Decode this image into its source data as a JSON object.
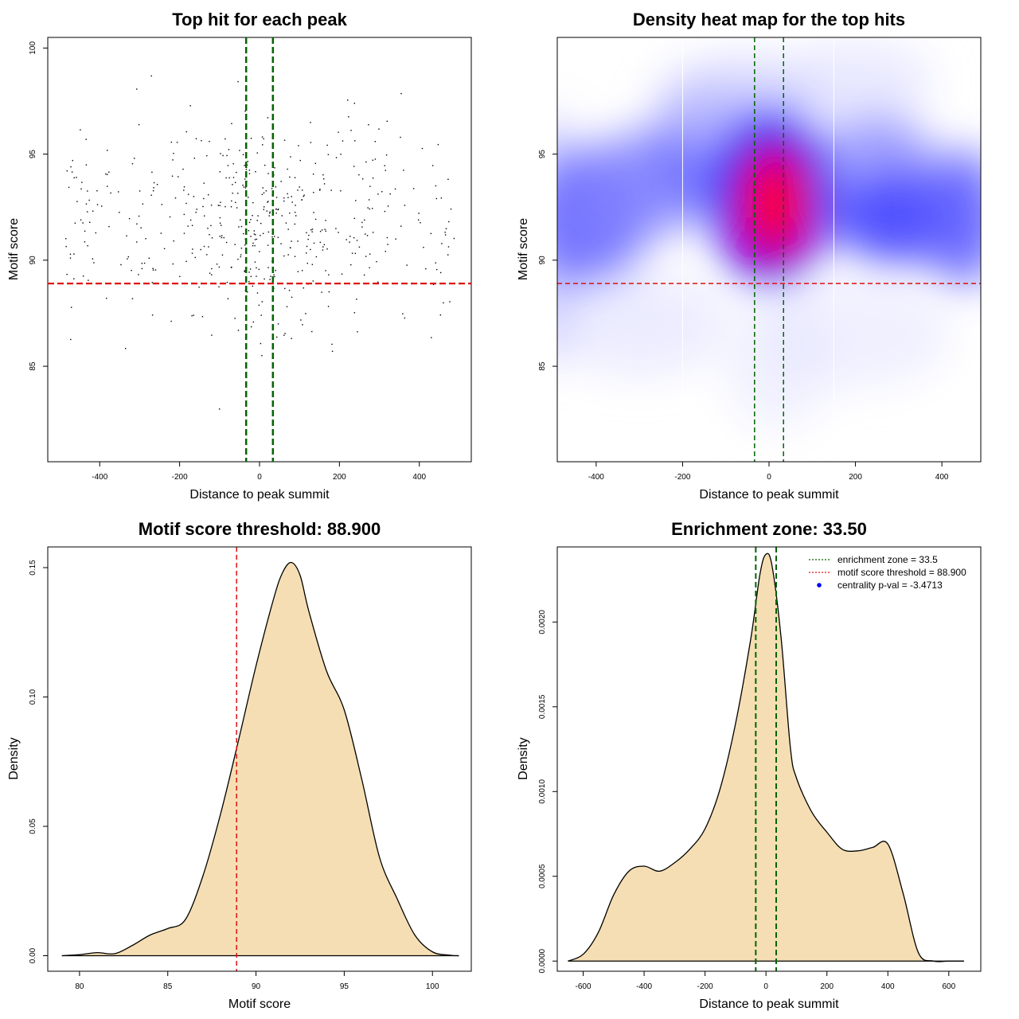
{
  "colors": {
    "green": "#006400",
    "red": "#dd1111",
    "fill": "#f5deb3",
    "points": "#000000",
    "heat_blue": "#0000ff",
    "heat_red": "#ff0000"
  },
  "chart_data": [
    {
      "type": "scatter",
      "title": "Top hit for each peak",
      "xlabel": "Distance to peak summit",
      "ylabel": "Motif score",
      "xlim": [
        -530,
        530
      ],
      "ylim": [
        80.5,
        100.5
      ],
      "xticks": [
        -400,
        -200,
        0,
        200,
        400
      ],
      "yticks": [
        85,
        90,
        95,
        100
      ],
      "xtick_labels": [
        "-400",
        "-200",
        "0",
        "200",
        "400"
      ],
      "ytick_labels": [
        "85",
        "90",
        "95",
        "100"
      ],
      "vlines": [
        -33.5,
        33.5
      ],
      "hline": 88.9,
      "n_points": 520,
      "points_x_range": [
        -490,
        490
      ],
      "points_y_range": [
        81,
        99.5
      ]
    },
    {
      "type": "heatmap",
      "title": "Density heat map for the top hits",
      "xlabel": "Distance to peak summit",
      "ylabel": "Motif score",
      "xlim": [
        -490,
        490
      ],
      "ylim": [
        80.5,
        100.5
      ],
      "xticks": [
        -400,
        -200,
        0,
        200,
        400
      ],
      "yticks": [
        85,
        90,
        95
      ],
      "xtick_labels": [
        "-400",
        "-200",
        "0",
        "200",
        "400"
      ],
      "ytick_labels": [
        "85",
        "90",
        "95"
      ],
      "vlines": [
        -33.5,
        33.5
      ],
      "hline": 88.9,
      "white_vlines": [
        -200,
        150
      ],
      "hotspot": {
        "x": 10,
        "y": 92.5
      }
    },
    {
      "type": "area",
      "title": "Motif score threshold: 88.900",
      "xlabel": "Motif score",
      "ylabel": "Density",
      "xlim": [
        78.2,
        102.2
      ],
      "ylim": [
        -0.006,
        0.158
      ],
      "xticks": [
        80,
        85,
        90,
        95,
        100
      ],
      "yticks": [
        0.0,
        0.05,
        0.1,
        0.15
      ],
      "xtick_labels": [
        "80",
        "85",
        "90",
        "95",
        "100"
      ],
      "ytick_labels": [
        "0.00",
        "0.05",
        "0.10",
        "0.15"
      ],
      "vline": 88.9,
      "x": [
        79.0,
        80.0,
        81.0,
        82.0,
        83.0,
        84.0,
        85.0,
        86.0,
        87.0,
        88.0,
        89.0,
        90.0,
        91.0,
        91.5,
        92.0,
        92.5,
        93.0,
        94.0,
        95.0,
        96.0,
        97.0,
        98.0,
        99.0,
        100.0,
        101.0,
        101.5
      ],
      "y": [
        0.0,
        0.0004,
        0.0012,
        0.0008,
        0.004,
        0.008,
        0.0105,
        0.014,
        0.031,
        0.055,
        0.083,
        0.112,
        0.138,
        0.148,
        0.152,
        0.147,
        0.133,
        0.11,
        0.095,
        0.068,
        0.038,
        0.022,
        0.008,
        0.0015,
        0.0002,
        0.0
      ]
    },
    {
      "type": "area",
      "title": "Enrichment zone: 33.50",
      "xlabel": "Distance to peak summit",
      "ylabel": "Density",
      "xlim": [
        -685,
        705
      ],
      "ylim": [
        -6e-05,
        0.002443
      ],
      "xticks": [
        -600,
        -400,
        -200,
        0,
        200,
        400,
        600
      ],
      "yticks": [
        0.0,
        0.0005,
        0.001,
        0.0015,
        0.002
      ],
      "xtick_labels": [
        "-600",
        "-400",
        "-200",
        "0",
        "200",
        "400",
        "600"
      ],
      "ytick_labels": [
        "0.0000",
        "0.0005",
        "0.0010",
        "0.0015",
        "0.0020"
      ],
      "vlines": [
        -33.5,
        33.5
      ],
      "x": [
        -650,
        -600,
        -550,
        -500,
        -450,
        -400,
        -350,
        -300,
        -250,
        -200,
        -150,
        -100,
        -50,
        -20,
        0,
        20,
        50,
        80,
        100,
        150,
        200,
        250,
        300,
        350,
        400,
        450,
        500,
        550,
        600,
        650
      ],
      "y": [
        0.0,
        4e-05,
        0.00017,
        0.00039,
        0.00053,
        0.00056,
        0.00053,
        0.00058,
        0.00066,
        0.00078,
        0.00102,
        0.0014,
        0.0019,
        0.00228,
        0.0024,
        0.00233,
        0.0019,
        0.00126,
        0.00108,
        0.00088,
        0.00076,
        0.00066,
        0.00065,
        0.00067,
        0.00069,
        0.0004,
        5e-05,
        0.0,
        0.0,
        0.0
      ],
      "legend": {
        "position": "top-right",
        "entries": [
          {
            "label": "enrichment zone = 33.5",
            "style": "dotted",
            "color": "#006400"
          },
          {
            "label": "motif score threshold = 88.900",
            "style": "dotted",
            "color": "#dd1111"
          },
          {
            "label": "centrality p-val = -3.4713",
            "style": "point",
            "color": "#0000ff"
          }
        ]
      }
    }
  ]
}
